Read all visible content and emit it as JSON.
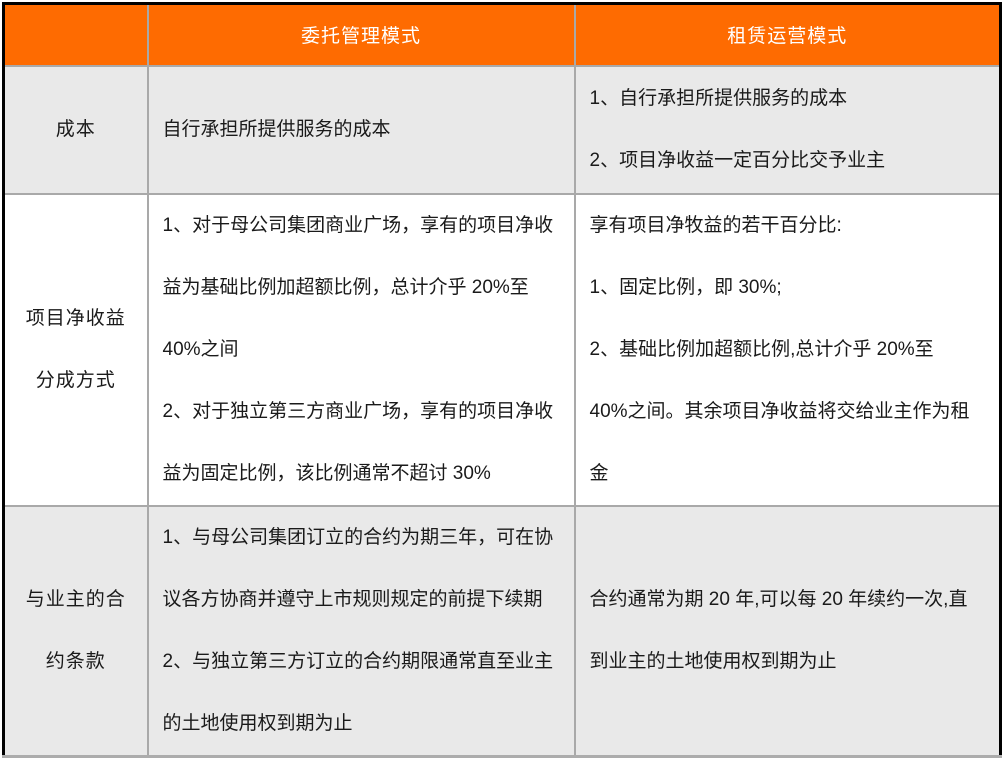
{
  "colors": {
    "header_bg": "#FE6B01",
    "header_text": "#FFFFFF",
    "row_gray_bg": "#E9E9E9",
    "row_white_bg": "#FFFFFF",
    "border_inner": "#A9A9A9",
    "border_outer": "#000000",
    "border_bottom": "#ACACAC",
    "text_color": "#1A1A1A"
  },
  "table": {
    "header": {
      "corner": "",
      "columns": [
        "委托管理模式",
        "租赁运营模式"
      ]
    },
    "rows": [
      {
        "label_lines": [
          "成本"
        ],
        "entrusted_lines": [
          "自行承担所提供服务的成本"
        ],
        "lease_lines": [
          "1、自行承担所提供服务的成本",
          "2、项目净收益一定百分比交予业主"
        ]
      },
      {
        "label_lines": [
          "项目净收益",
          "分成方式"
        ],
        "entrusted_lines": [
          "1、对于母公司集团商业广场，享有的项目净收",
          "益为基础比例加超额比例，总计介乎 20%至",
          "40%之间",
          "2、对于独立第三方商业广场，享有的项目净收",
          "益为固定比例，该比例通常不超讨 30%"
        ],
        "lease_lines": [
          "享有项目净牧益的若干百分比:",
          "1、固定比例，即 30%;",
          "2、基础比例加超额比例,总计介乎 20%至",
          "40%之间。其余项目净收益将交给业主作为租",
          "金"
        ]
      },
      {
        "label_lines": [
          "与业主的合",
          "约条款"
        ],
        "entrusted_lines": [
          "1、与母公司集团订立的合约为期三年，可在协",
          "议各方协商并遵守上市规则规定的前提下续期",
          "2、与独立第三方订立的合约期限通常直至业主",
          "的土地使用权到期为止"
        ],
        "lease_lines": [
          "合约通常为期 20 年,可以每 20 年续约一次,直",
          "到业主的土地使用权到期为止"
        ]
      }
    ]
  }
}
